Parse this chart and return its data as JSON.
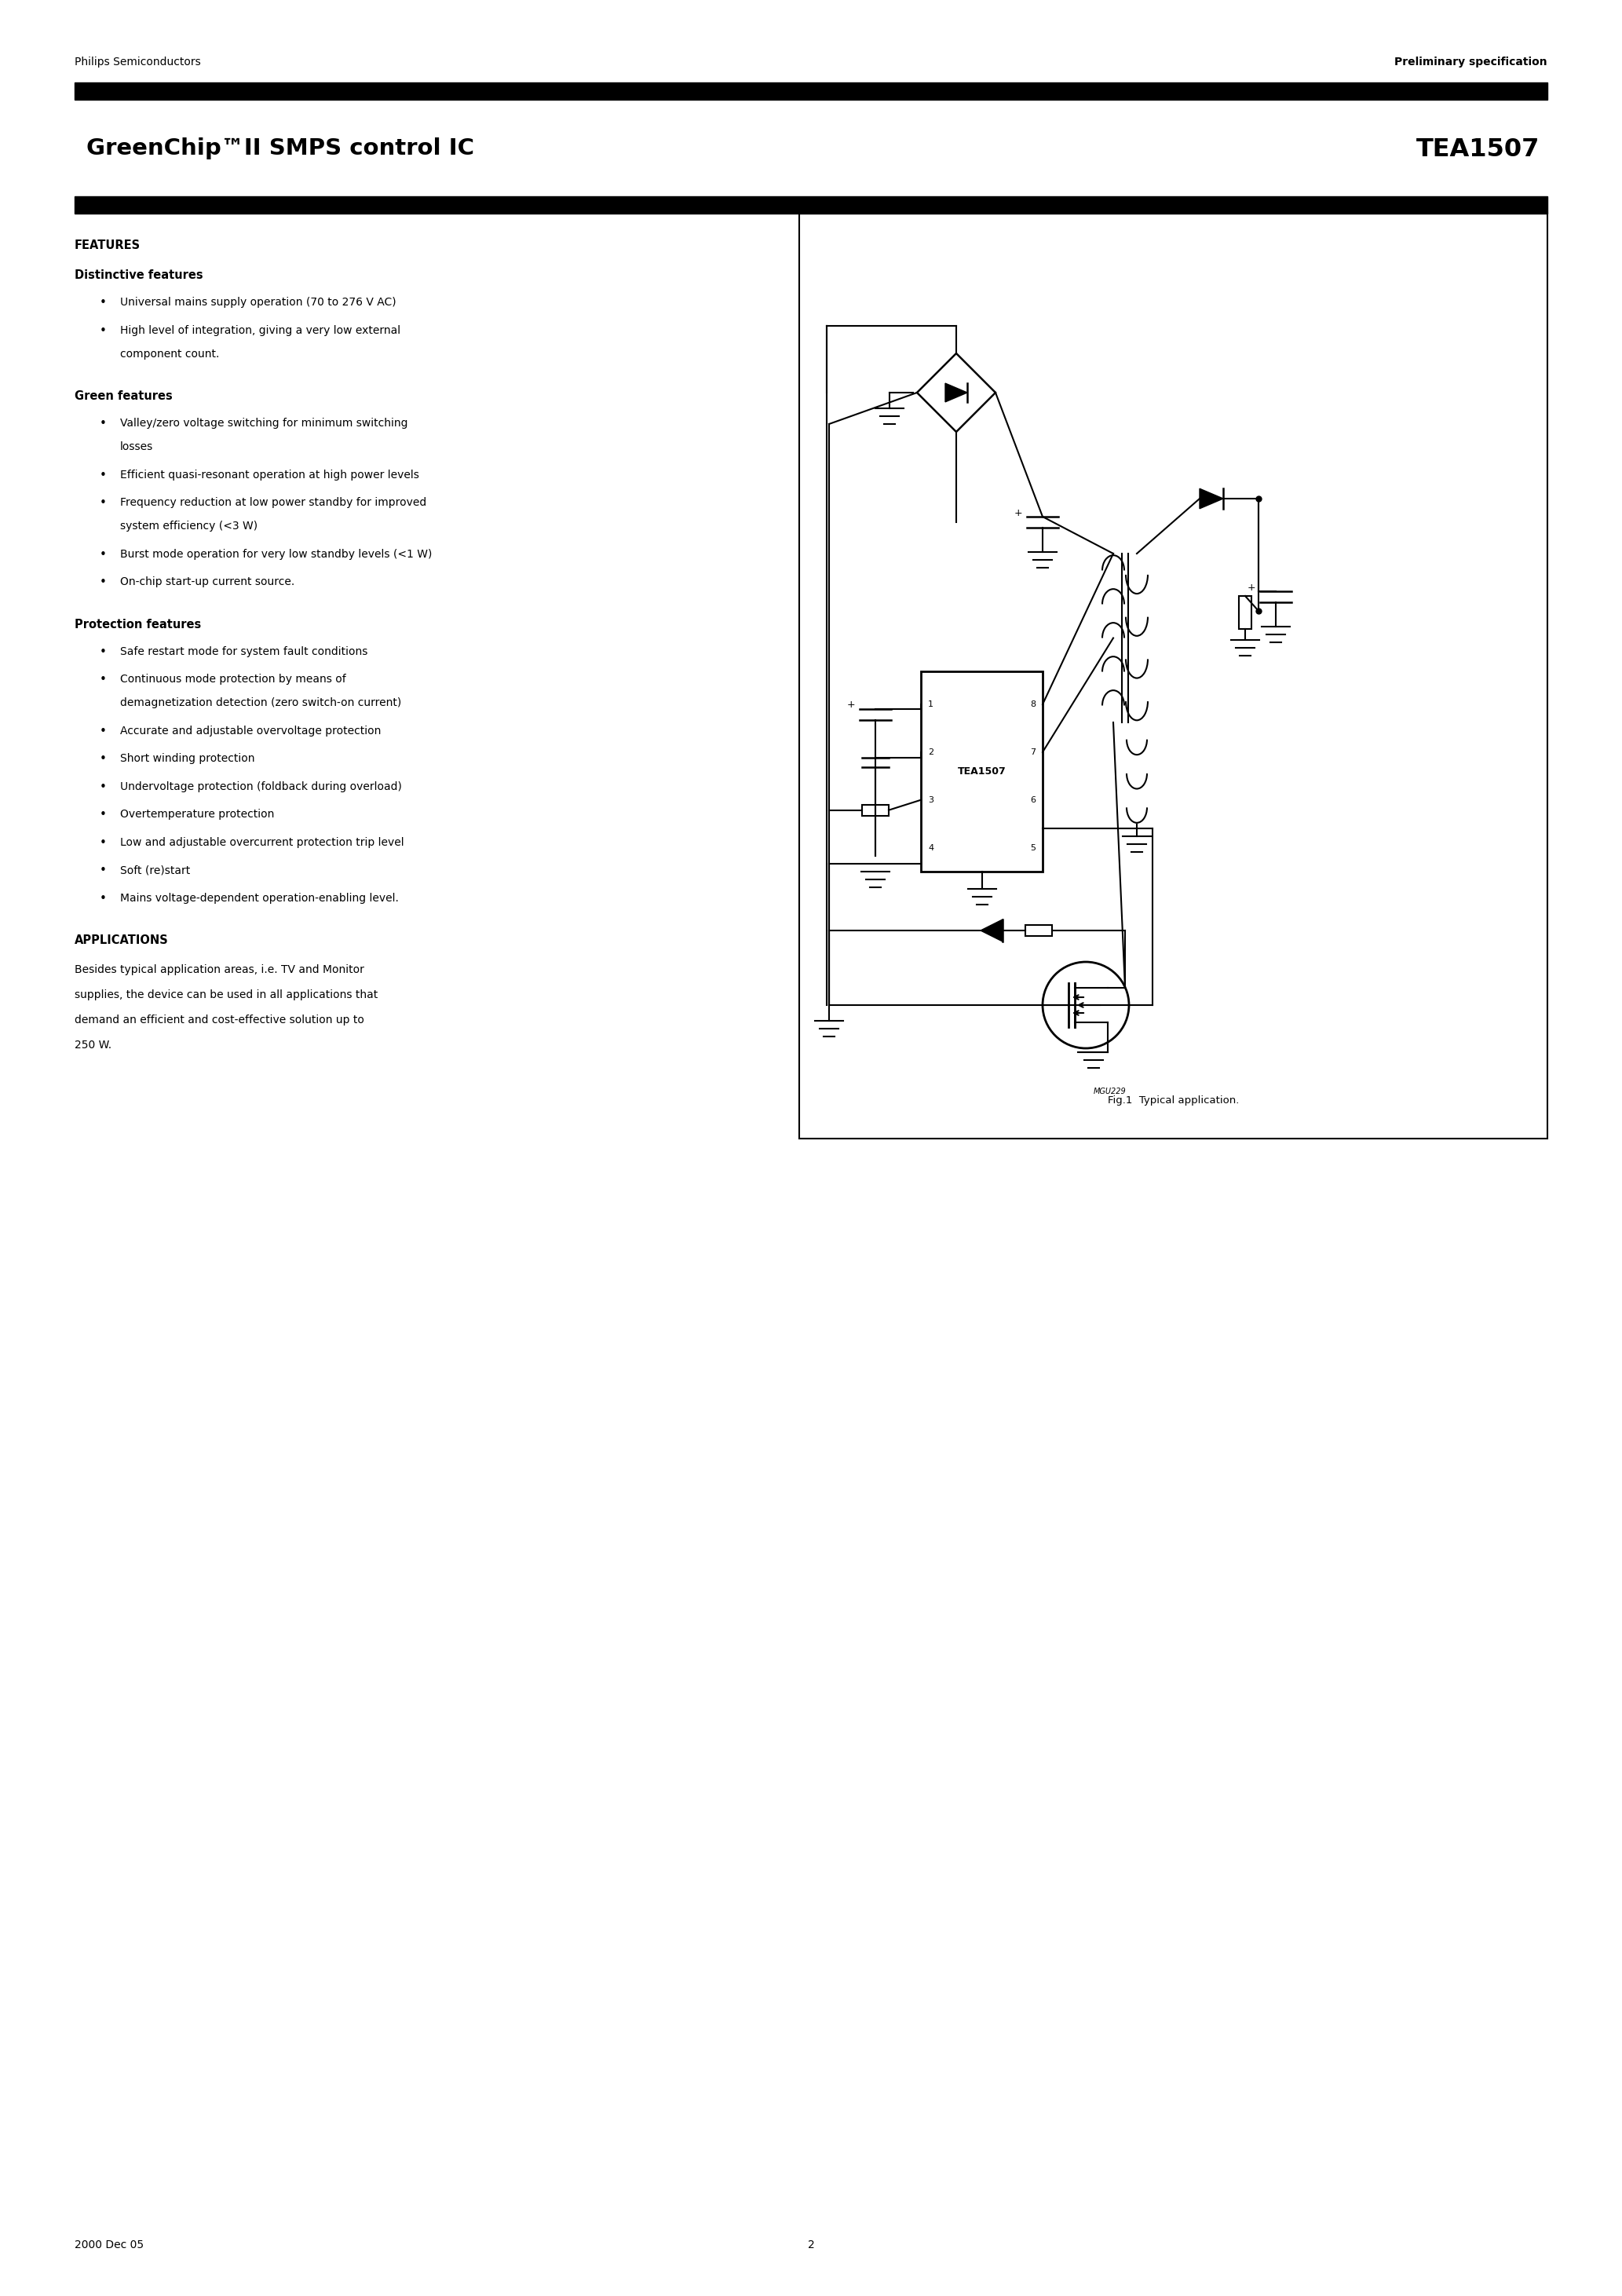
{
  "page_width": 20.66,
  "page_height": 29.24,
  "background_color": "#ffffff",
  "header_left": "Philips Semiconductors",
  "header_right": "Preliminary specification",
  "title_left": "GreenChip™II SMPS control IC",
  "title_right": "TEA1507",
  "section_features": "FEATURES",
  "section_distinctive": "Distinctive features",
  "distinctive_bullets": [
    "Universal mains supply operation (70 to 276 V AC)",
    "High level of integration, giving a very low external\ncomponent count."
  ],
  "section_green": "Green features",
  "green_bullets": [
    "Valley/zero voltage switching for minimum switching\nlosses",
    "Efficient quasi-resonant operation at high power levels",
    "Frequency reduction at low power standby for improved\nsystem efficiency (<3 W)",
    "Burst mode operation for very low standby levels (<1 W)",
    "On-chip start-up current source."
  ],
  "section_protection": "Protection features",
  "protection_bullets": [
    "Safe restart mode for system fault conditions",
    "Continuous mode protection by means of\ndemagnetization detection (zero switch-on current)",
    "Accurate and adjustable overvoltage protection",
    "Short winding protection",
    "Undervoltage protection (foldback during overload)",
    "Overtemperature protection",
    "Low and adjustable overcurrent protection trip level",
    "Soft (re)start",
    "Mains voltage-dependent operation-enabling level."
  ],
  "section_applications": "APPLICATIONS",
  "applications_text": "Besides typical application areas, i.e. TV and Monitor\nsupplies, the device can be used in all applications that\ndemand an efficient and cost-effective solution up to\n250 W.",
  "fig_caption": "Fig.1  Typical application.",
  "footer_left": "2000 Dec 05",
  "footer_center": "2",
  "text_color": "#000000"
}
